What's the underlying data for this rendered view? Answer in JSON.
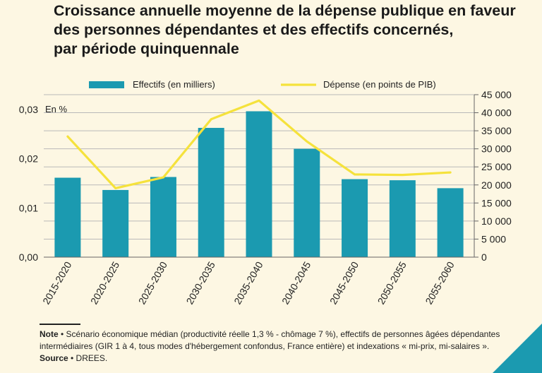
{
  "chart_data": {
    "type": "bar+line",
    "title_lines": [
      "Croissance annuelle moyenne de la dépense publique en faveur",
      "des personnes dépendantes et des effectifs concernés,",
      "par période quinquennale"
    ],
    "unit_label_left": "En %",
    "categories": [
      "2015-2020",
      "2020-2025",
      "2025-2030",
      "2030-2035",
      "2035-2040",
      "2040-2045",
      "2045-2050",
      "2050-2055",
      "2055-2060"
    ],
    "series": [
      {
        "name": "Effectifs (en milliers)",
        "type": "bar",
        "axis": "right",
        "color": "#1b9ab0",
        "values": [
          22000,
          18600,
          22200,
          35800,
          40400,
          30000,
          21600,
          21300,
          19100
        ]
      },
      {
        "name": "Dépense (en points de PIB)",
        "type": "line",
        "axis": "left",
        "color": "#f5e23c",
        "values": [
          0.0245,
          0.014,
          0.0162,
          0.028,
          0.0318,
          0.0235,
          0.0168,
          0.0167,
          0.0172
        ]
      }
    ],
    "left_axis": {
      "ylim": [
        0,
        0.033
      ],
      "ticks": [
        0,
        0.01,
        0.02,
        0.03
      ],
      "tick_labels": [
        "0,00",
        "0,01",
        "0,02",
        "0,03"
      ]
    },
    "right_axis": {
      "ylim": [
        0,
        45000
      ],
      "ticks": [
        0,
        5000,
        10000,
        15000,
        20000,
        25000,
        30000,
        35000,
        40000,
        45000
      ],
      "tick_labels": [
        "0",
        "5 000",
        "10 000",
        "15 000",
        "20 000",
        "25 000",
        "30 000",
        "35 000",
        "40 000",
        "45 000"
      ]
    },
    "grid": true,
    "legend_position": "top"
  },
  "notes": {
    "note_label": "Note",
    "note_text": " • Scénario économique médian (productivité réelle 1,3 % - chômage 7 %), effectifs de personnes âgées dépendantes intermédiaires (GIR 1 à 4, tous modes d'hébergement confondus, France entière) et indexations « mi-prix, mi-salaires ».",
    "source_label": "Source",
    "source_text": " • DREES."
  },
  "colors": {
    "background": "#fdf7e3",
    "bar": "#1b9ab0",
    "line": "#f5e23c",
    "grid": "#b9b9b9"
  }
}
